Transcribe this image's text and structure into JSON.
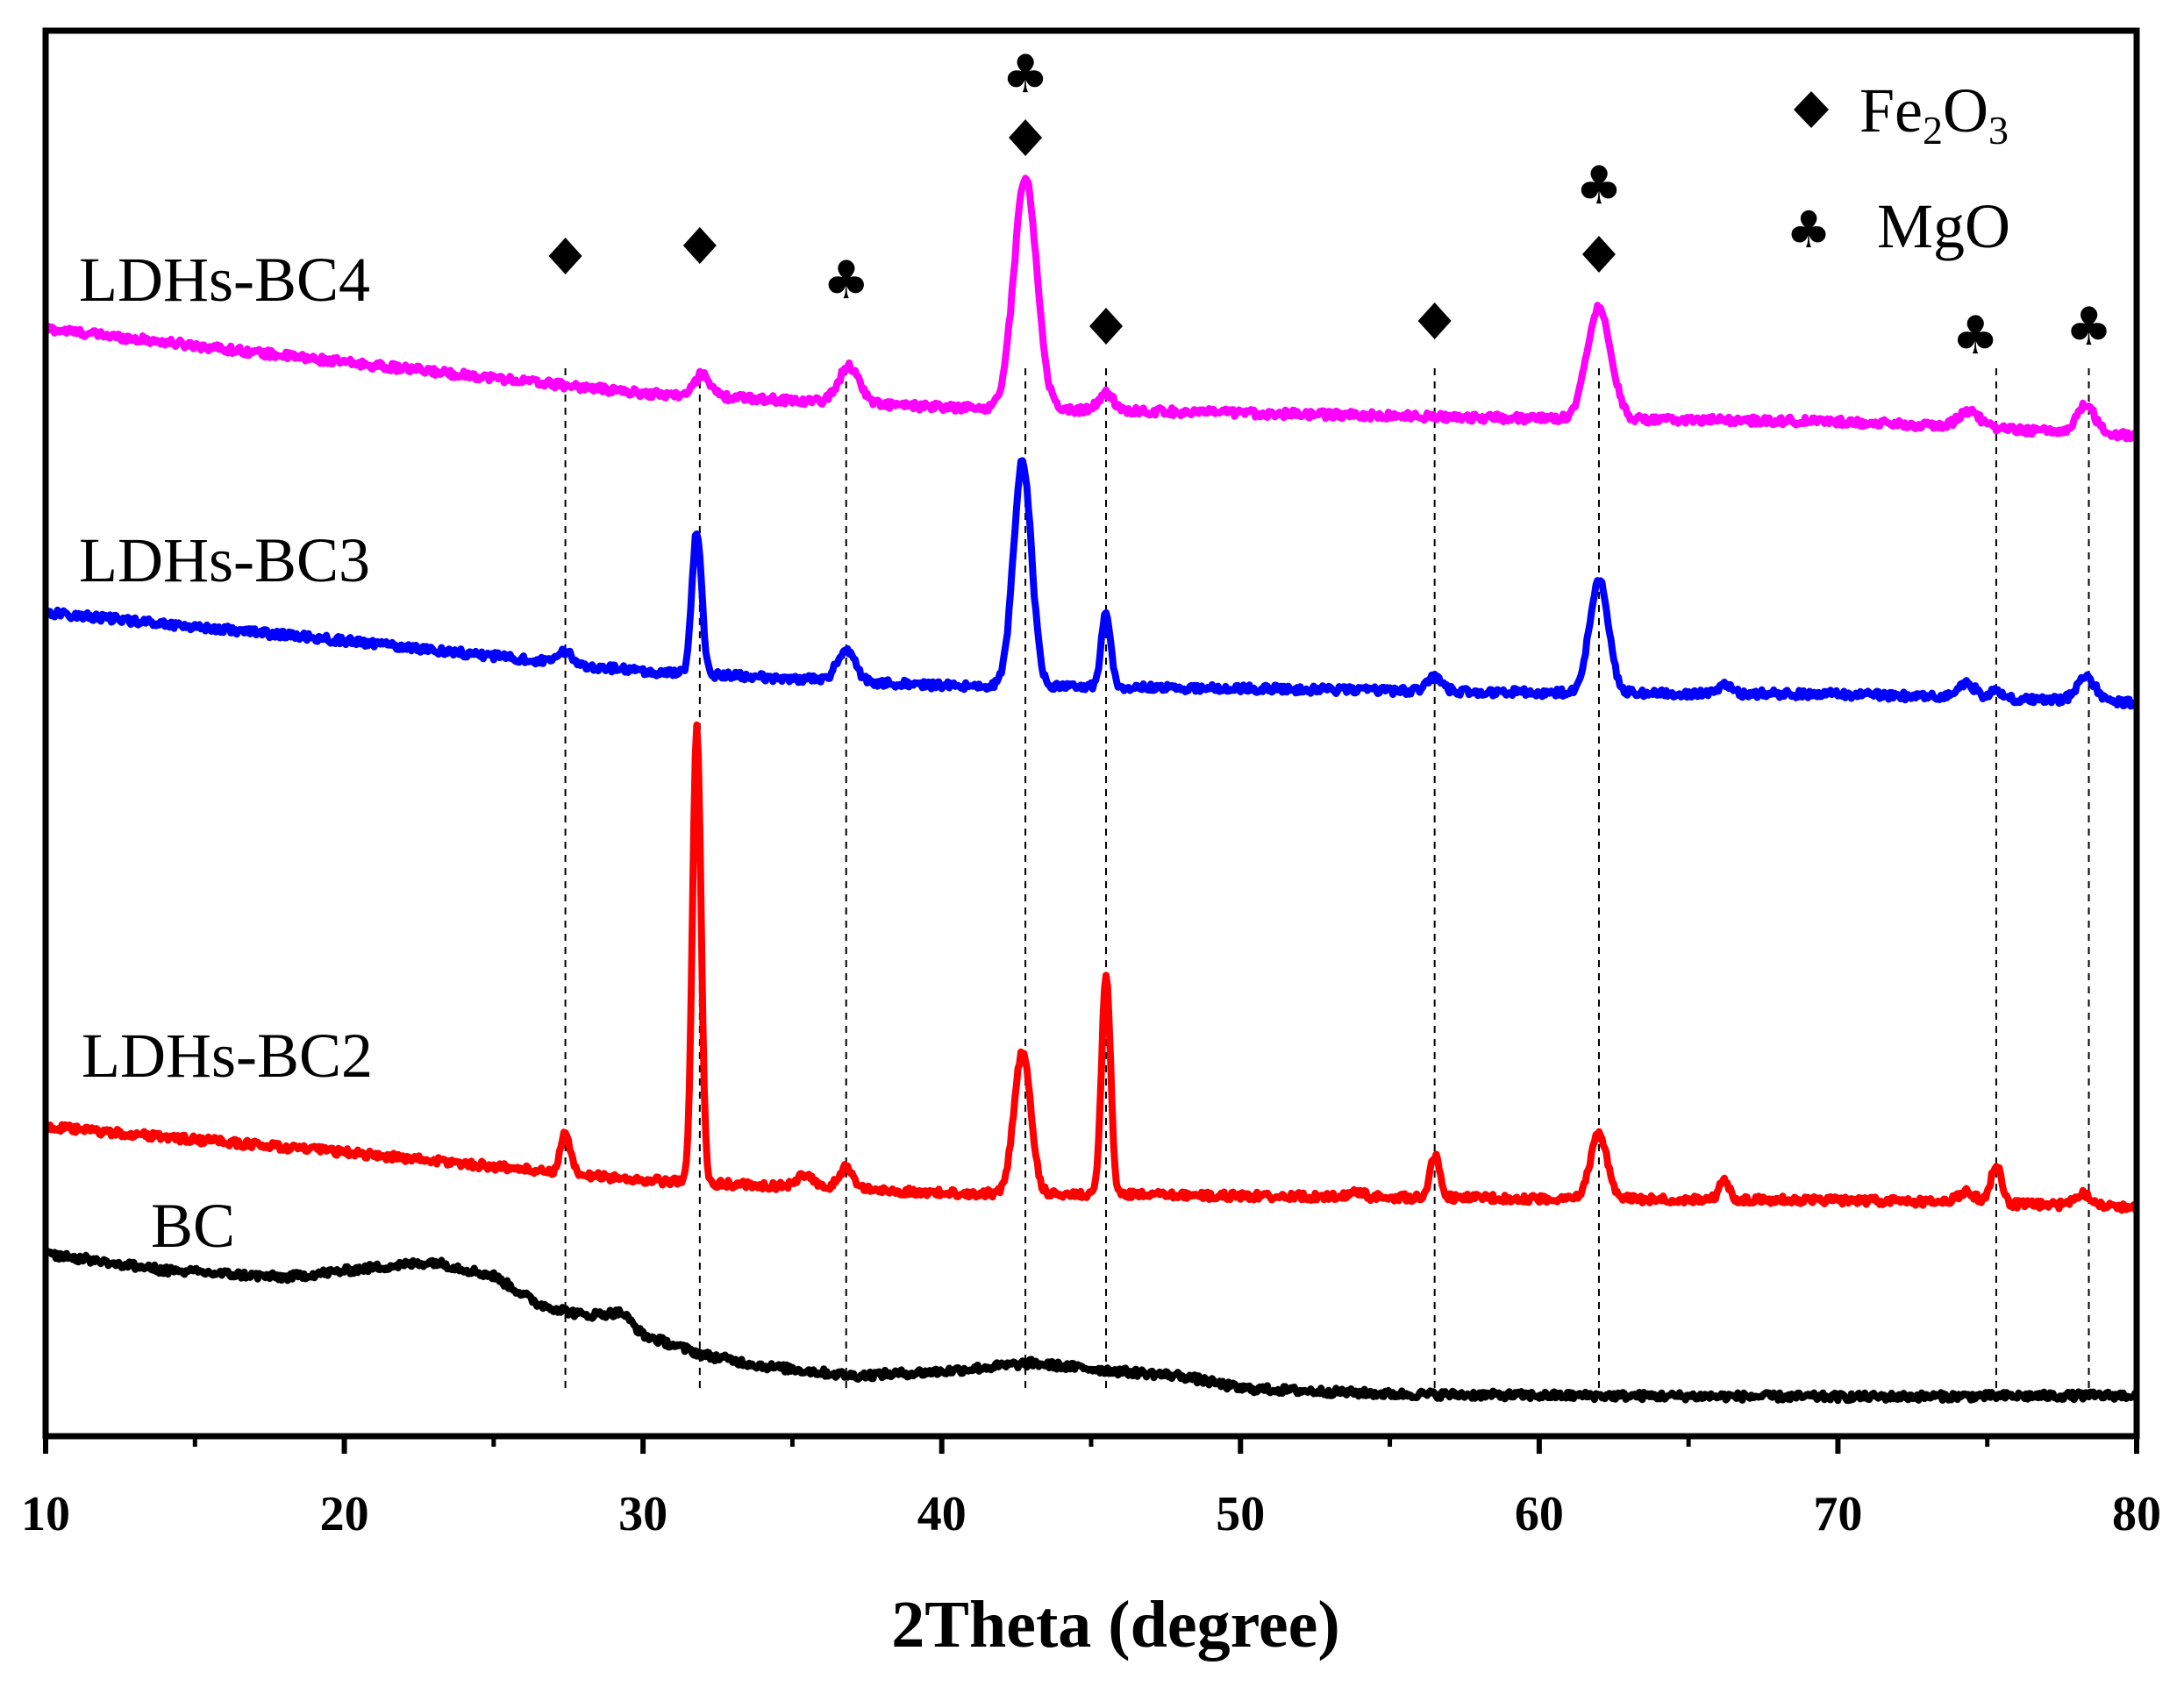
{
  "chart_data": {
    "type": "line",
    "title": "",
    "xlabel": "2Theta (degree)",
    "ylabel": "",
    "xlim": [
      10,
      80
    ],
    "xticks": [
      10,
      20,
      30,
      40,
      50,
      60,
      70,
      80
    ],
    "xtick_labels": [
      "10",
      "20",
      "30",
      "40",
      "50",
      "60",
      "70",
      "80"
    ],
    "y_units": "stacked intensity (a.u., offset per series)",
    "ylim": [
      0,
      100
    ],
    "colors": {
      "LDHs-BC4": "#ff00ff",
      "LDHs-BC3": "#0000ff",
      "LDHs-BC2": "#ff0000",
      "BC": "#000000"
    },
    "series": [
      {
        "name": "LDHs-BC4",
        "label": "LDHs-BC4",
        "baseline": [
          [
            10,
            78.8
          ],
          [
            20,
            76.4
          ],
          [
            30,
            74.2
          ],
          [
            40,
            73.2
          ],
          [
            50,
            72.8
          ],
          [
            60,
            72.4
          ],
          [
            70,
            72.2
          ],
          [
            80,
            71.2
          ]
        ],
        "peaks": [
          [
            32.0,
            1.6,
            0.25
          ],
          [
            36.9,
            2.6,
            0.35
          ],
          [
            42.8,
            16.5,
            0.38
          ],
          [
            45.5,
            1.2,
            0.25
          ],
          [
            62.0,
            8.0,
            0.4
          ],
          [
            74.4,
            1.2,
            0.35
          ],
          [
            78.3,
            2.0,
            0.3
          ]
        ]
      },
      {
        "name": "LDHs-BC3",
        "label": "LDHs-BC3",
        "baseline": [
          [
            10,
            58.6
          ],
          [
            20,
            56.6
          ],
          [
            30,
            54.4
          ],
          [
            40,
            53.4
          ],
          [
            50,
            53.2
          ],
          [
            60,
            52.9
          ],
          [
            70,
            52.8
          ],
          [
            80,
            52.2
          ]
        ],
        "peaks": [
          [
            27.4,
            0.9,
            0.2
          ],
          [
            31.8,
            10.2,
            0.16
          ],
          [
            36.8,
            2.2,
            0.3
          ],
          [
            42.7,
            16.0,
            0.3
          ],
          [
            45.5,
            5.3,
            0.16
          ],
          [
            56.5,
            1.0,
            0.25
          ],
          [
            62.0,
            8.0,
            0.32
          ],
          [
            66.2,
            0.6,
            0.2
          ],
          [
            74.3,
            1.0,
            0.3
          ],
          [
            75.3,
            0.5,
            0.2
          ],
          [
            78.3,
            1.8,
            0.3
          ]
        ]
      },
      {
        "name": "LDHs-BC2",
        "label": "LDHs-BC2",
        "baseline": [
          [
            10,
            22.0
          ],
          [
            20,
            20.2
          ],
          [
            30,
            18.2
          ],
          [
            40,
            17.3
          ],
          [
            50,
            17.1
          ],
          [
            60,
            16.9
          ],
          [
            70,
            16.8
          ],
          [
            80,
            16.3
          ]
        ],
        "peaks": [
          [
            27.4,
            2.8,
            0.16
          ],
          [
            31.8,
            32.5,
            0.14
          ],
          [
            35.4,
            0.9,
            0.25
          ],
          [
            36.8,
            1.5,
            0.25
          ],
          [
            42.7,
            10.0,
            0.28
          ],
          [
            45.5,
            15.5,
            0.15
          ],
          [
            53.9,
            0.4,
            0.2
          ],
          [
            56.5,
            3.0,
            0.16
          ],
          [
            62.0,
            4.6,
            0.28
          ],
          [
            66.2,
            1.4,
            0.16
          ],
          [
            74.3,
            0.8,
            0.3
          ],
          [
            75.3,
            2.8,
            0.18
          ],
          [
            78.2,
            0.9,
            0.3
          ]
        ]
      },
      {
        "name": "BC",
        "label": "BC",
        "baseline": [
          [
            10,
            13.0
          ],
          [
            14,
            11.8
          ],
          [
            18,
            11.3
          ],
          [
            21,
            12.0
          ],
          [
            23,
            12.4
          ],
          [
            25,
            11.4
          ],
          [
            26.5,
            9.4
          ],
          [
            28,
            8.6
          ],
          [
            29.3,
            8.8
          ],
          [
            30,
            7.2
          ],
          [
            32,
            5.8
          ],
          [
            34,
            5.0
          ],
          [
            37,
            4.3
          ],
          [
            40,
            4.6
          ],
          [
            43,
            5.2
          ],
          [
            46,
            4.6
          ],
          [
            48,
            4.3
          ],
          [
            50,
            3.4
          ],
          [
            55,
            3.0
          ],
          [
            60,
            2.9
          ],
          [
            70,
            2.8
          ],
          [
            80,
            2.9
          ]
        ],
        "peaks": []
      }
    ],
    "reference_lines": [
      27.4,
      31.9,
      36.8,
      42.8,
      45.5,
      56.5,
      62.0,
      75.3,
      78.4
    ],
    "phase_markers": [
      {
        "x": 27.4,
        "symbols": [
          "diamond"
        ]
      },
      {
        "x": 31.9,
        "symbols": [
          "diamond"
        ]
      },
      {
        "x": 36.8,
        "symbols": [
          "club"
        ]
      },
      {
        "x": 42.8,
        "symbols": [
          "diamond",
          "club"
        ]
      },
      {
        "x": 45.5,
        "symbols": [
          "diamond"
        ]
      },
      {
        "x": 56.5,
        "symbols": [
          "diamond"
        ]
      },
      {
        "x": 62.0,
        "symbols": [
          "diamond",
          "club"
        ]
      },
      {
        "x": 74.6,
        "symbols": [
          "club"
        ]
      },
      {
        "x": 78.4,
        "symbols": [
          "club"
        ]
      }
    ],
    "legend": {
      "placement": "top-right",
      "entries": [
        {
          "symbol": "diamond",
          "glyph": "◆",
          "main": "Fe",
          "sub1": "2",
          "mid": "O",
          "sub2": "3",
          "text": "Fe2O3"
        },
        {
          "symbol": "club",
          "glyph": "♣",
          "main": "MgO",
          "text": "MgO"
        }
      ]
    }
  }
}
